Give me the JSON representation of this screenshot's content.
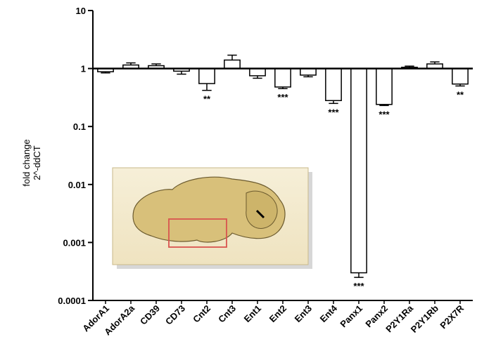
{
  "chart_data": {
    "type": "bar",
    "log_y": true,
    "ylabel": [
      "fold change",
      "2^-ddCT"
    ],
    "categories": [
      "AdorA1",
      "AdorA2a",
      "CD39",
      "CD73",
      "Cnt2",
      "Cnt3",
      "Ent1",
      "Ent2",
      "Ent3",
      "Ent4",
      "Panx1",
      "Panx2",
      "P2Y1Ra",
      "P2Y1Rb",
      "P2X7R"
    ],
    "values": [
      0.88,
      1.15,
      1.12,
      0.9,
      0.55,
      1.4,
      0.75,
      0.48,
      0.77,
      0.28,
      0.0003,
      0.24,
      1.05,
      1.2,
      0.54
    ],
    "errors": [
      0.04,
      0.1,
      0.08,
      0.1,
      0.13,
      0.3,
      0.07,
      0.03,
      0.05,
      0.03,
      5e-05,
      0.01,
      0.05,
      0.1,
      0.04
    ],
    "significance": [
      null,
      null,
      null,
      null,
      "**",
      null,
      null,
      "***",
      null,
      "***",
      "***",
      "***",
      null,
      null,
      "**"
    ],
    "baseline": 1,
    "color": "#ffffff",
    "ylim": [
      0.0001,
      10
    ],
    "yticks": [
      10,
      1,
      0.1,
      0.01,
      0.001,
      0.0001
    ]
  }
}
